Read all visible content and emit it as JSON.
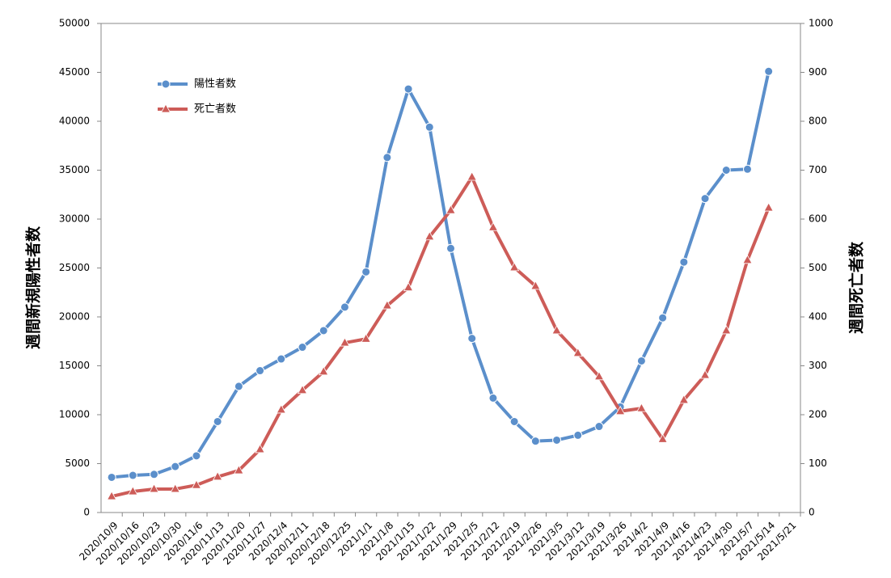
{
  "chart_data": {
    "type": "line",
    "y_label": "週間新規陽性者数",
    "y2_label": "週間死亡者数",
    "categories": [
      "2020/10/9",
      "2020/10/16",
      "2020/10/23",
      "2020/10/30",
      "2020/11/6",
      "2020/11/13",
      "2020/11/20",
      "2020/11/27",
      "2020/12/4",
      "2020/12/11",
      "2020/12/18",
      "2020/12/25",
      "2021/1/1",
      "2021/1/8",
      "2021/1/15",
      "2021/1/22",
      "2021/1/29",
      "2021/2/5",
      "2021/2/12",
      "2021/2/19",
      "2021/2/26",
      "2021/3/5",
      "2021/3/12",
      "2021/3/19",
      "2021/3/26",
      "2021/4/2",
      "2021/4/9",
      "2021/4/16",
      "2021/4/23",
      "2021/4/30",
      "2021/5/7",
      "2021/5/14",
      "2021/5/21"
    ],
    "series": [
      {
        "name": "陽性者数",
        "color": "#5b8fcb",
        "marker": "circle",
        "values": [
          3600,
          3800,
          3900,
          4700,
          5800,
          9300,
          12900,
          14500,
          15700,
          16900,
          18600,
          21000,
          24600,
          36300,
          43300,
          39400,
          27000,
          17800,
          11700,
          9300,
          7300,
          7400,
          7900,
          8800,
          10800,
          15500,
          19900,
          25600,
          32100,
          35000,
          35100,
          45100,
          null
        ]
      },
      {
        "name": "死亡者数",
        "color": "#cd5c58",
        "marker": "triangle",
        "axis": "y2",
        "values": [
          33,
          43,
          48,
          48,
          56,
          73,
          86,
          129,
          210,
          250,
          288,
          347,
          355,
          423,
          460,
          564,
          618,
          686,
          583,
          501,
          463,
          372,
          326,
          278,
          207,
          213,
          150,
          230,
          281,
          372,
          516,
          623,
          null
        ]
      }
    ],
    "ylim": [
      0,
      50000
    ],
    "yticks": [
      0,
      5000,
      10000,
      15000,
      20000,
      25000,
      30000,
      35000,
      40000,
      45000,
      50000
    ],
    "y2lim": [
      0,
      1000
    ],
    "y2ticks": [
      0,
      100,
      200,
      300,
      400,
      500,
      600,
      700,
      800,
      900,
      1000
    ],
    "legend": "top-left"
  }
}
